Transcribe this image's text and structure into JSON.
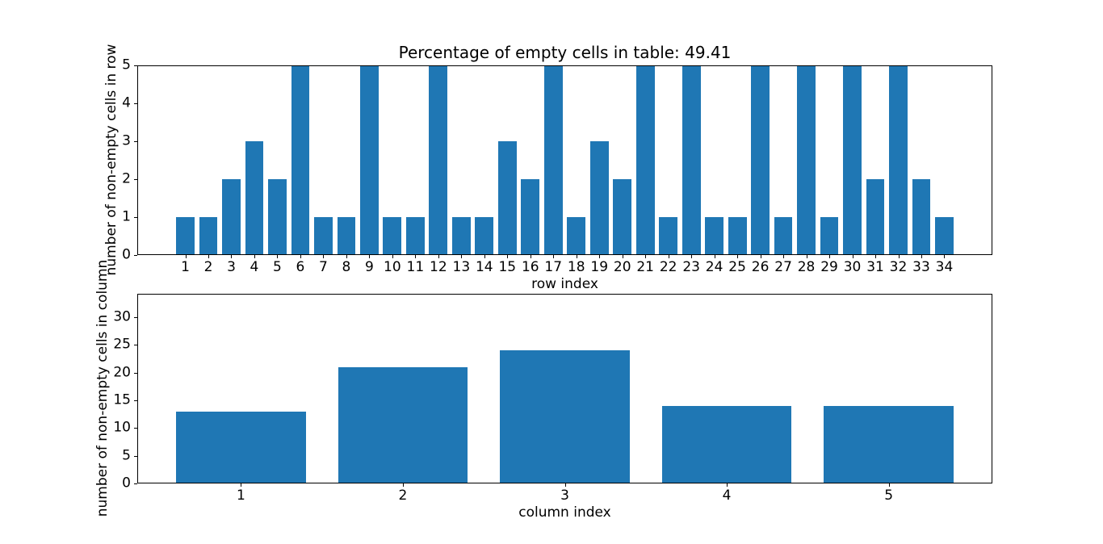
{
  "figure": {
    "background": "#ffffff",
    "text_color": "#000000"
  },
  "chart_data": [
    {
      "type": "bar",
      "title": "Percentage of empty cells in table: 49.41",
      "xlabel": "row index",
      "ylabel": "number of non-empty cells in row",
      "categories": [
        1,
        2,
        3,
        4,
        5,
        6,
        7,
        8,
        9,
        10,
        11,
        12,
        13,
        14,
        15,
        16,
        17,
        18,
        19,
        20,
        21,
        22,
        23,
        24,
        25,
        26,
        27,
        28,
        29,
        30,
        31,
        32,
        33,
        34
      ],
      "values": [
        1,
        1,
        2,
        3,
        2,
        5,
        1,
        1,
        5,
        1,
        1,
        5,
        1,
        1,
        3,
        2,
        5,
        1,
        3,
        2,
        5,
        1,
        5,
        1,
        1,
        5,
        1,
        5,
        1,
        5,
        2,
        5,
        2,
        1
      ],
      "yticks": [
        0,
        1,
        2,
        3,
        4,
        5
      ],
      "ylim": [
        0,
        5
      ],
      "xlim": [
        -1.09,
        36.09
      ],
      "bar_width": 0.8,
      "bar_color": "#1f77b4",
      "grid": false
    },
    {
      "type": "bar",
      "title": "",
      "xlabel": "column index",
      "ylabel": "number of non-empty cells in column",
      "categories": [
        1,
        2,
        3,
        4,
        5
      ],
      "values": [
        13,
        21,
        24,
        14,
        14
      ],
      "yticks": [
        0,
        5,
        10,
        15,
        20,
        25,
        30
      ],
      "ylim": [
        0,
        34.2
      ],
      "xlim": [
        0.36,
        5.64
      ],
      "bar_width": 0.8,
      "bar_color": "#1f77b4",
      "grid": false
    }
  ]
}
